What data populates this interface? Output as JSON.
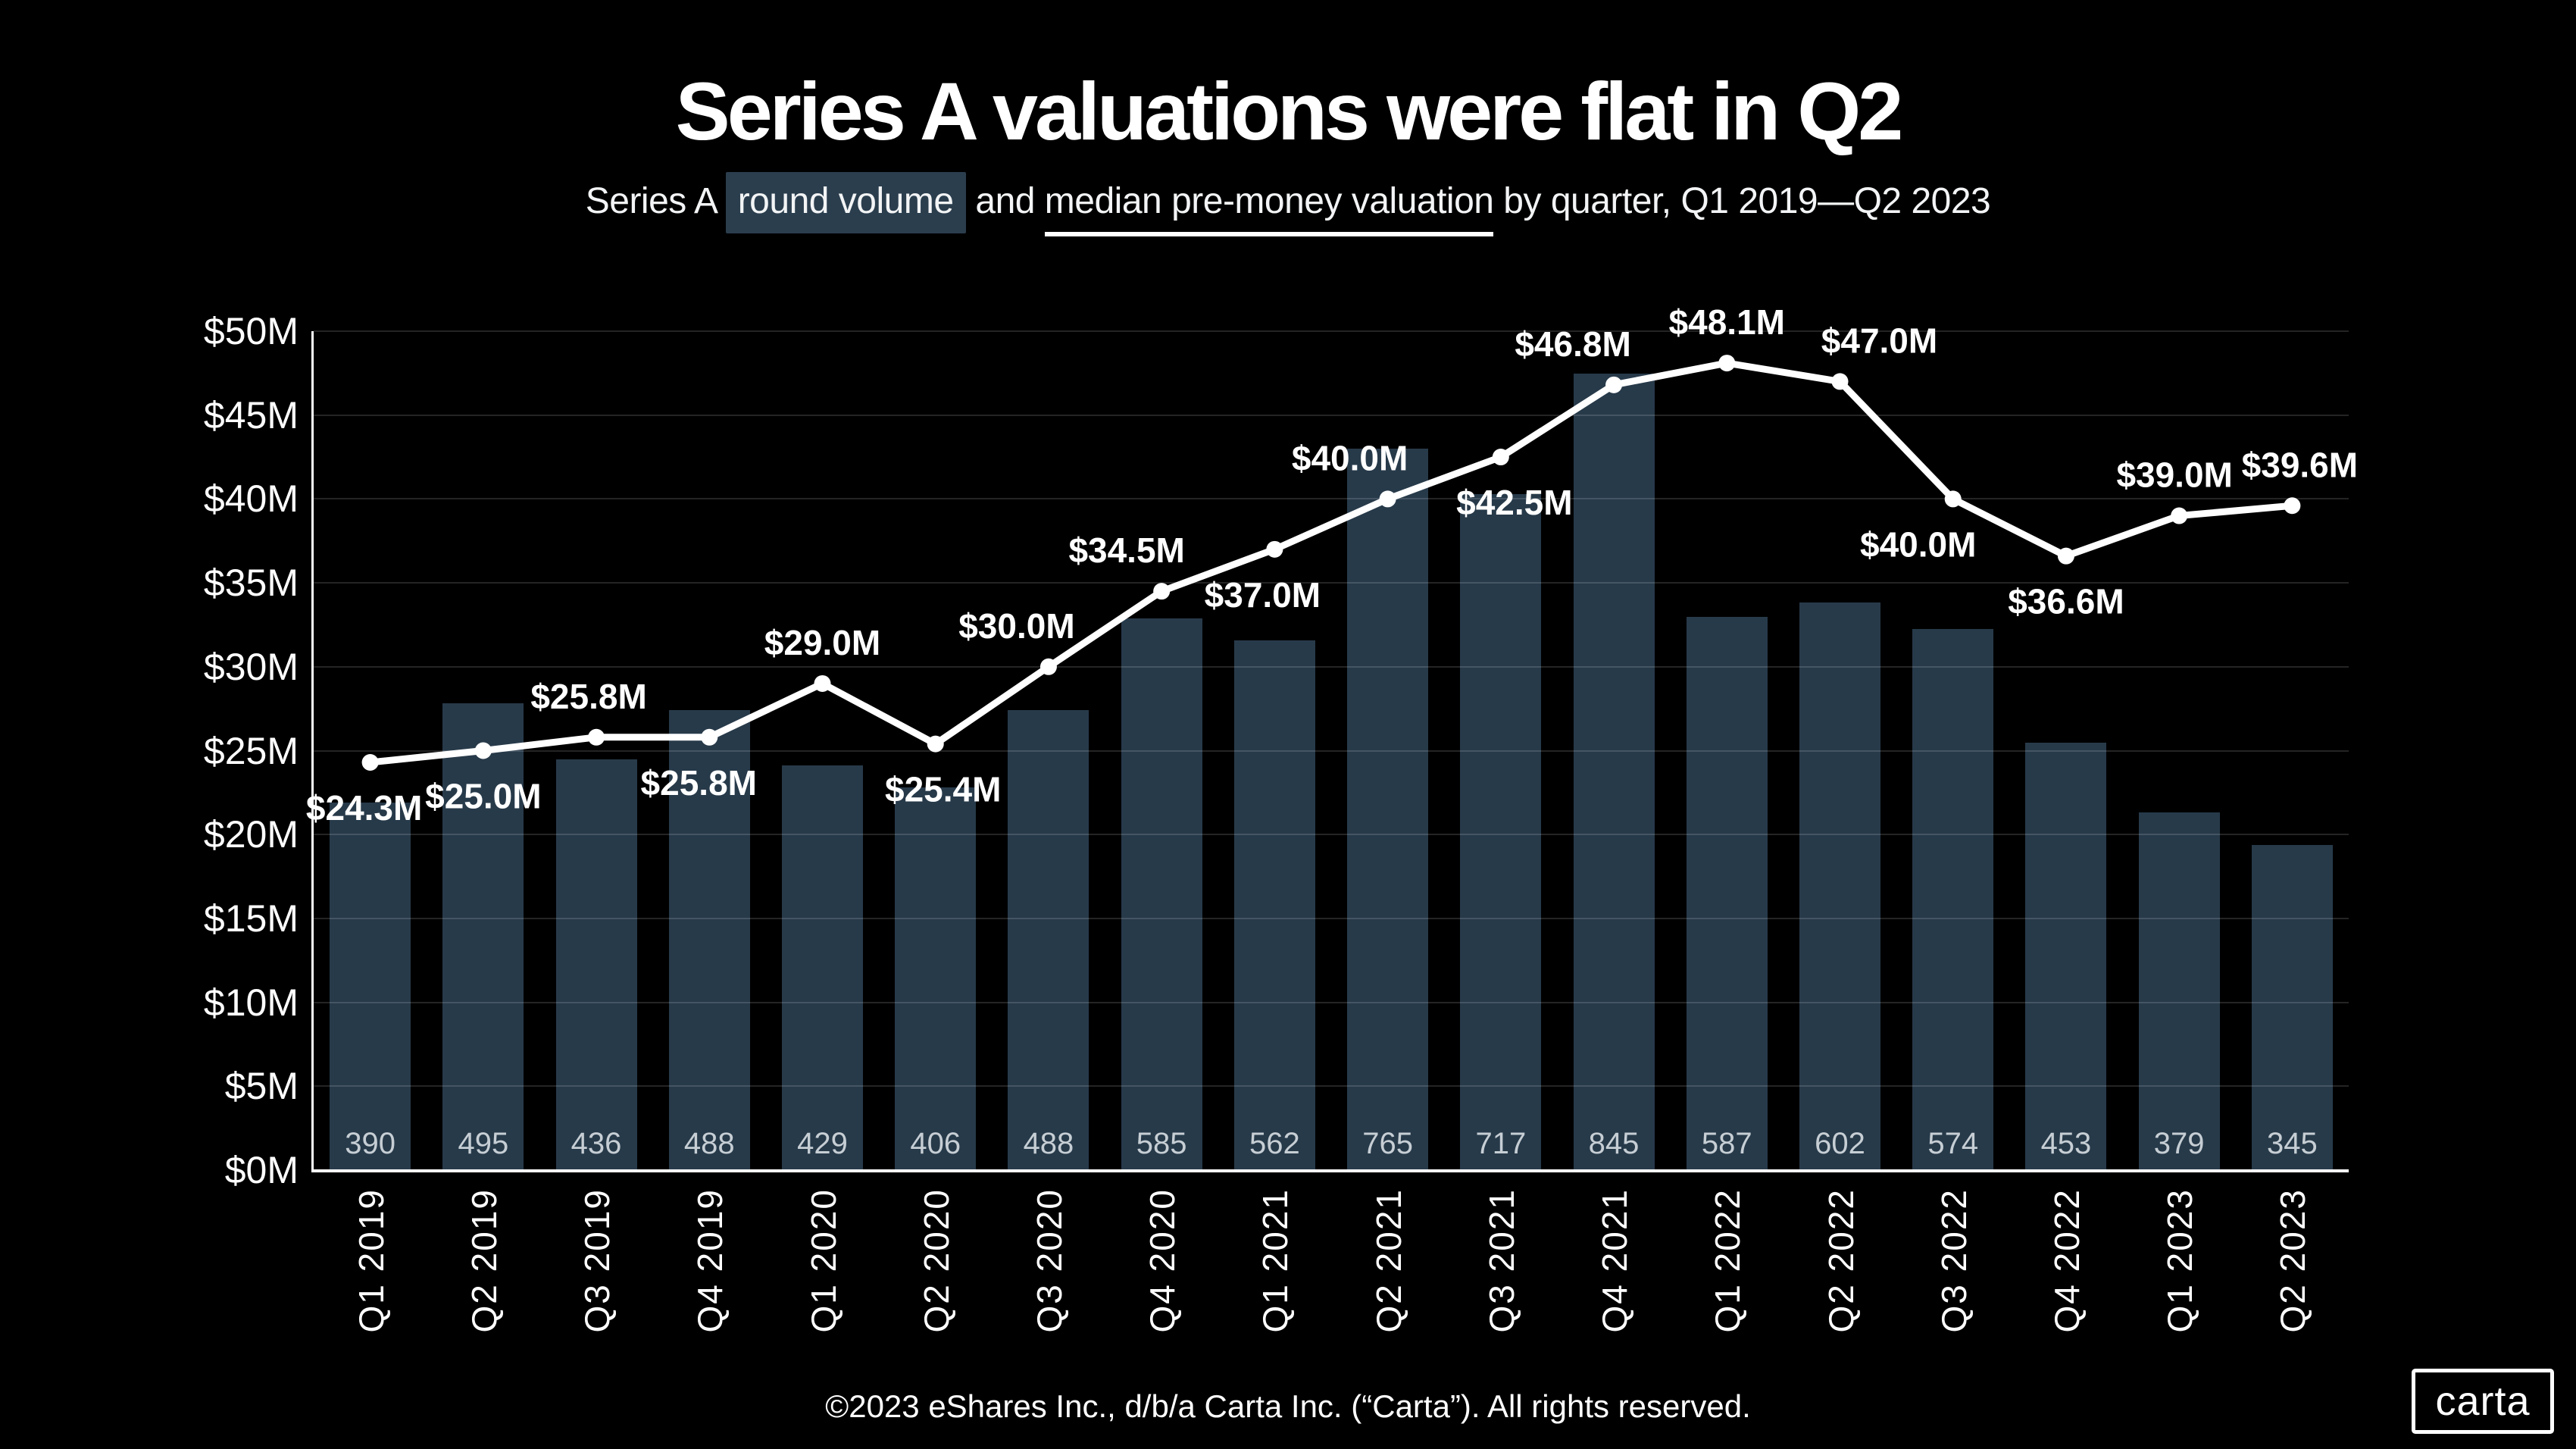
{
  "header": {
    "title": "Series A valuations were flat in Q2",
    "subtitle": {
      "prefix": "Series A ",
      "highlight": "round volume",
      "mid": " and ",
      "underlined": "median pre-money valuation",
      "suffix": " by quarter, Q1 2019—Q2 2023"
    }
  },
  "chart_data": {
    "type": "bar+line combo",
    "categories": [
      "Q1 2019",
      "Q2 2019",
      "Q3 2019",
      "Q4 2019",
      "Q1 2020",
      "Q2 2020",
      "Q3 2020",
      "Q4 2020",
      "Q1 2021",
      "Q2 2021",
      "Q3 2021",
      "Q4 2021",
      "Q1 2022",
      "Q2 2022",
      "Q3 2022",
      "Q4 2022",
      "Q1 2023",
      "Q2 2023"
    ],
    "series": [
      {
        "name": "Series A round volume",
        "type": "bar",
        "values": [
          390,
          495,
          436,
          488,
          429,
          406,
          488,
          585,
          562,
          765,
          717,
          845,
          587,
          602,
          574,
          453,
          379,
          345
        ]
      },
      {
        "name": "Median pre-money valuation",
        "type": "line",
        "unit": "$M",
        "values": [
          24.3,
          25.0,
          25.8,
          25.8,
          29.0,
          25.4,
          30.0,
          34.5,
          37.0,
          40.0,
          42.5,
          46.8,
          48.1,
          47.0,
          40.0,
          36.6,
          39.0,
          39.6
        ],
        "labels": [
          "$24.3M",
          "$25.0M",
          "$25.8M",
          "$25.8M",
          "$29.0M",
          "$25.4M",
          "$30.0M",
          "$34.5M",
          "$37.0M",
          "$40.0M",
          "$42.5M",
          "$46.8M",
          "$48.1M",
          "$47.0M",
          "$40.0M",
          "$36.6M",
          "$39.0M",
          "$39.6M"
        ]
      }
    ],
    "y_axis": {
      "tick_values": [
        0,
        5,
        10,
        15,
        20,
        25,
        30,
        35,
        40,
        45,
        50
      ],
      "tick_labels": [
        "$0M",
        "$5M",
        "$10M",
        "$15M",
        "$20M",
        "$25M",
        "$30M",
        "$35M",
        "$40M",
        "$45M",
        "$50M"
      ],
      "lim": [
        0,
        50
      ]
    },
    "layout": {
      "grid": true,
      "legend": "none",
      "volume_scale_m_per_round": 0.0562,
      "bar_width_fraction": 0.72,
      "point_label_positions": [
        {
          "pos": "below",
          "dx": -8
        },
        {
          "pos": "below",
          "dx": 0
        },
        {
          "pos": "above",
          "dx": -10
        },
        {
          "pos": "below",
          "dx": -14
        },
        {
          "pos": "above",
          "dx": 0
        },
        {
          "pos": "below",
          "dx": 10
        },
        {
          "pos": "above",
          "dx": -42
        },
        {
          "pos": "above",
          "dx": -46
        },
        {
          "pos": "below",
          "dx": -16
        },
        {
          "pos": "above",
          "dx": -50
        },
        {
          "pos": "below",
          "dx": 18
        },
        {
          "pos": "above",
          "dx": -54
        },
        {
          "pos": "above",
          "dx": 0
        },
        {
          "pos": "above",
          "dx": 52
        },
        {
          "pos": "below",
          "dx": -46
        },
        {
          "pos": "below",
          "dx": 0
        },
        {
          "pos": "above",
          "dx": -6
        },
        {
          "pos": "above",
          "dx": 10
        }
      ]
    }
  },
  "colors": {
    "background": "#000000",
    "bar": "#273a4a",
    "line": "#ffffff",
    "grid": "rgba(255,255,255,0.14)",
    "axis": "#ffffff",
    "count_label": "#c6ced4",
    "highlight_bg": "#2b3e4e",
    "text": "#ffffff"
  },
  "footer": {
    "copyright": "©2023 eShares Inc., d/b/a Carta Inc. (“Carta”). All rights reserved.",
    "logo_text": "carta"
  }
}
